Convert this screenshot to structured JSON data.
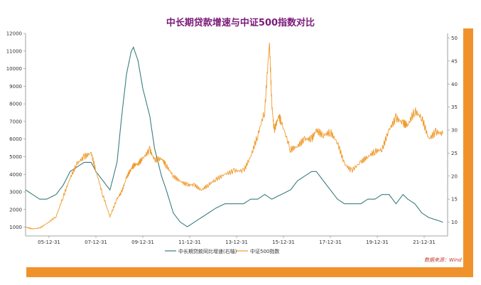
{
  "title": "中长期贷款增速与中证500指数对比",
  "source": "数据来源：Wind",
  "legend": {
    "series1": "中长期贷款同比增速(右轴)",
    "series2": "中证500指数"
  },
  "colors": {
    "loan": "#3a7d7e",
    "index": "#ef9a2b",
    "title": "#7a1a78",
    "accent": "#f0922b"
  },
  "chart_data": {
    "type": "line",
    "title": "中长期贷款增速与中证500指数对比",
    "xlabel": "",
    "ylabel_left": "",
    "ylabel_right": "",
    "left_axis": {
      "min": 500,
      "max": 12000,
      "ticks": [
        1000,
        2000,
        3000,
        4000,
        5000,
        6000,
        7000,
        8000,
        9000,
        10000,
        11000,
        12000
      ]
    },
    "right_axis": {
      "min": 7,
      "max": 51,
      "ticks": [
        10,
        15,
        20,
        25,
        30,
        35,
        40,
        45,
        50
      ]
    },
    "x_ticks": [
      "05-12-31",
      "07-12-31",
      "09-12-31",
      "11-12-31",
      "13-12-31",
      "15-12-31",
      "17-12-31",
      "19-12-31",
      "21-12-31"
    ],
    "x_range": [
      2005.0,
      2023.0
    ],
    "grid": false,
    "legend_position": "bottom",
    "series": [
      {
        "name": "中长期贷款同比增速(右轴)",
        "axis": "right",
        "x": [
          2005.0,
          2005.3,
          2005.6,
          2005.9,
          2006.3,
          2006.6,
          2006.9,
          2007.2,
          2007.5,
          2007.8,
          2008.0,
          2008.3,
          2008.6,
          2008.9,
          2009.1,
          2009.3,
          2009.5,
          2009.6,
          2009.8,
          2010.0,
          2010.3,
          2010.5,
          2010.8,
          2011.0,
          2011.3,
          2011.6,
          2011.9,
          2012.2,
          2012.5,
          2012.8,
          2013.1,
          2013.5,
          2013.9,
          2014.3,
          2014.6,
          2014.9,
          2015.2,
          2015.5,
          2015.9,
          2016.3,
          2016.6,
          2016.9,
          2017.2,
          2017.4,
          2017.7,
          2018.0,
          2018.3,
          2018.6,
          2018.9,
          2019.3,
          2019.6,
          2019.9,
          2020.2,
          2020.5,
          2020.8,
          2021.1,
          2021.3,
          2021.6,
          2021.9,
          2022.2,
          2022.5,
          2022.8
        ],
        "values": [
          17,
          16,
          15,
          15,
          16,
          18,
          21,
          22,
          23,
          23,
          21,
          19,
          17,
          23,
          33,
          42,
          47,
          48,
          45,
          39,
          33,
          26,
          20,
          17,
          12,
          10,
          9,
          10,
          11,
          12,
          13,
          14,
          14,
          14,
          15,
          15,
          16,
          15,
          16,
          17,
          19,
          20,
          21,
          21,
          19,
          17,
          15,
          14,
          14,
          14,
          15,
          15,
          16,
          16,
          14,
          16,
          15,
          14,
          12,
          11,
          10.5,
          10
        ]
      },
      {
        "name": "中证500指数",
        "axis": "left",
        "x": [
          2005.0,
          2005.3,
          2005.6,
          2005.9,
          2006.3,
          2006.6,
          2006.9,
          2007.2,
          2007.5,
          2007.8,
          2008.0,
          2008.3,
          2008.6,
          2008.9,
          2009.1,
          2009.3,
          2009.5,
          2009.6,
          2009.8,
          2010.0,
          2010.3,
          2010.5,
          2010.8,
          2011.0,
          2011.3,
          2011.6,
          2011.9,
          2012.2,
          2012.5,
          2012.8,
          2013.1,
          2013.5,
          2013.9,
          2014.3,
          2014.6,
          2014.9,
          2015.2,
          2015.4,
          2015.5,
          2015.6,
          2015.8,
          2015.9,
          2016.3,
          2016.6,
          2016.9,
          2017.2,
          2017.4,
          2017.7,
          2018.0,
          2018.3,
          2018.6,
          2018.9,
          2019.3,
          2019.6,
          2019.9,
          2020.2,
          2020.5,
          2020.8,
          2021.1,
          2021.3,
          2021.6,
          2021.9,
          2022.2,
          2022.5,
          2022.8
        ],
        "values": [
          1000,
          900,
          950,
          1200,
          1600,
          2700,
          3800,
          4600,
          5000,
          5200,
          4200,
          2800,
          1600,
          2600,
          3000,
          3800,
          4300,
          4500,
          4600,
          4900,
          5400,
          4800,
          4900,
          4500,
          3900,
          3600,
          3400,
          3400,
          3100,
          3400,
          3700,
          4000,
          4200,
          4200,
          5000,
          6200,
          7600,
          11500,
          8000,
          6500,
          7300,
          7000,
          5400,
          5600,
          6000,
          6000,
          6500,
          6200,
          6400,
          5800,
          4600,
          4200,
          4700,
          5000,
          5300,
          5400,
          6500,
          7200,
          6900,
          6800,
          7600,
          7200,
          6000,
          6400,
          6300
        ]
      }
    ]
  }
}
